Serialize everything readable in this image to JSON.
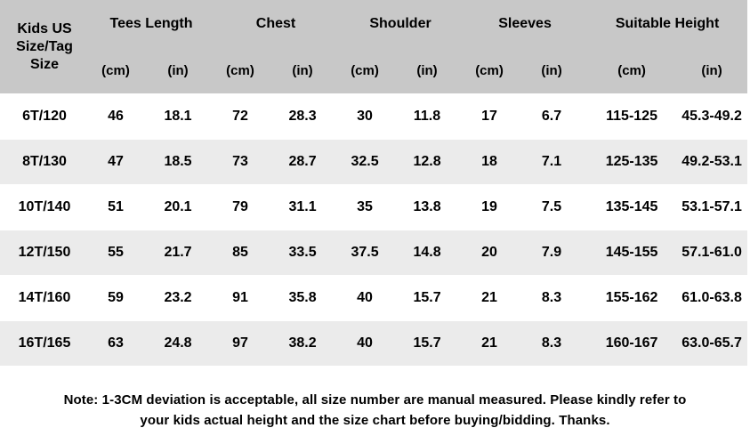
{
  "header": {
    "size_col": "Kids US Size/Tag Size",
    "groups": [
      "Tees Length",
      "Chest",
      "Shoulder",
      "Sleeves",
      "Suitable Height"
    ],
    "units": [
      "(cm)",
      "(in)"
    ]
  },
  "rows": [
    [
      "6T/120",
      "46",
      "18.1",
      "72",
      "28.3",
      "30",
      "11.8",
      "17",
      "6.7",
      "115-125",
      "45.3-49.2"
    ],
    [
      "8T/130",
      "47",
      "18.5",
      "73",
      "28.7",
      "32.5",
      "12.8",
      "18",
      "7.1",
      "125-135",
      "49.2-53.1"
    ],
    [
      "10T/140",
      "51",
      "20.1",
      "79",
      "31.1",
      "35",
      "13.8",
      "19",
      "7.5",
      "135-145",
      "53.1-57.1"
    ],
    [
      "12T/150",
      "55",
      "21.7",
      "85",
      "33.5",
      "37.5",
      "14.8",
      "20",
      "7.9",
      "145-155",
      "57.1-61.0"
    ],
    [
      "14T/160",
      "59",
      "23.2",
      "91",
      "35.8",
      "40",
      "15.7",
      "21",
      "8.3",
      "155-162",
      "61.0-63.8"
    ],
    [
      "16T/165",
      "63",
      "24.8",
      "97",
      "38.2",
      "40",
      "15.7",
      "21",
      "8.3",
      "160-167",
      "63.0-65.7"
    ]
  ],
  "note": {
    "line1": "Note: 1-3CM deviation is acceptable, all size number are manual measured. Please kindly refer to",
    "line2": "your kids actual height and the size chart before buying/bidding. Thanks."
  }
}
